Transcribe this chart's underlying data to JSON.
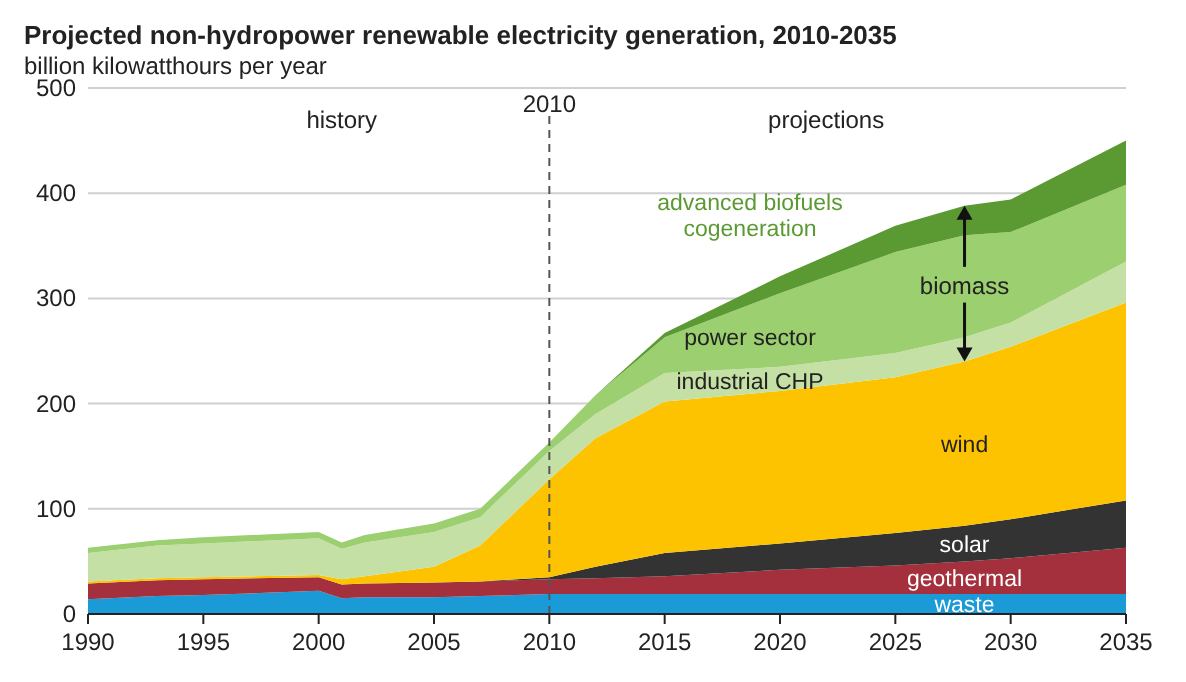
{
  "chart_data": {
    "type": "area",
    "stacked": true,
    "title": "Projected non-hydropower renewable electricity generation, 2010-2035",
    "subtitle": "billion kilowatthours per year",
    "x": [
      1990,
      1993,
      1995,
      2000,
      2001,
      2002,
      2005,
      2007,
      2010,
      2012,
      2015,
      2020,
      2025,
      2028,
      2030,
      2035
    ],
    "series": [
      {
        "name": "waste",
        "color": "#1a9ad6",
        "values": [
          14,
          17,
          18,
          22,
          15,
          16,
          16,
          17,
          19,
          19,
          19,
          19,
          19,
          19,
          19,
          19
        ]
      },
      {
        "name": "geothermal",
        "color": "#a3303c",
        "values": [
          15,
          15,
          15,
          13,
          13,
          13,
          14,
          14,
          14,
          15,
          17,
          23,
          27,
          31,
          34,
          44
        ]
      },
      {
        "name": "solar",
        "color": "#333333",
        "values": [
          0,
          0,
          0,
          0,
          0,
          0,
          0,
          0,
          2,
          11,
          22,
          25,
          31,
          34,
          37,
          45
        ]
      },
      {
        "name": "wind",
        "color": "#fdc300",
        "values": [
          2,
          2,
          2,
          2,
          5,
          7,
          15,
          34,
          93,
          122,
          144,
          145,
          148,
          156,
          164,
          188
        ]
      },
      {
        "name": "industrial CHP",
        "color": "#c5e0a5",
        "values": [
          27,
          31,
          32,
          35,
          29,
          32,
          33,
          27,
          27,
          23,
          27,
          23,
          23,
          23,
          23,
          39
        ]
      },
      {
        "name": "power sector",
        "color": "#9bcf6f",
        "values": [
          5,
          5,
          6,
          6,
          6,
          7,
          8,
          8,
          8,
          18,
          34,
          70,
          96,
          97,
          86,
          73
        ]
      },
      {
        "name": "advanced biofuels cogeneration",
        "color": "#5b9a33",
        "values": [
          0,
          0,
          0,
          0,
          0,
          0,
          0,
          0,
          0,
          0,
          4,
          16,
          25,
          28,
          31,
          42
        ]
      }
    ],
    "xlim": [
      1990,
      2035
    ],
    "xticks": [
      1990,
      1995,
      2000,
      2005,
      2010,
      2015,
      2020,
      2025,
      2030,
      2035
    ],
    "ylim": [
      0,
      500
    ],
    "yticks": [
      0,
      100,
      200,
      300,
      400,
      500
    ],
    "grid": "y",
    "legend": false,
    "ref_lines": [
      {
        "axis": "x",
        "value": 2010,
        "label": "2010",
        "color": "#555555",
        "line_style": "dashed"
      }
    ],
    "annotations": [
      "history",
      "projections",
      "biomass"
    ]
  }
}
